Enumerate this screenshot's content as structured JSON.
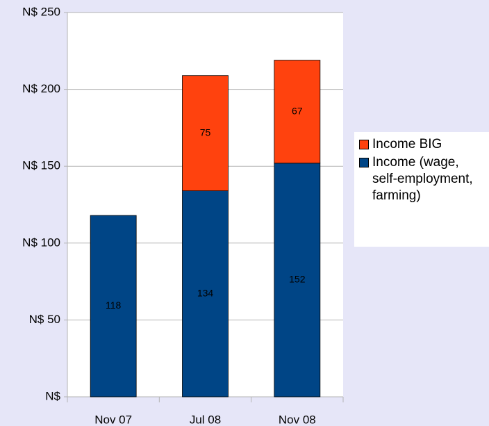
{
  "chart_data": {
    "type": "stacked_bar",
    "categories": [
      "Nov 07",
      "Jul 08",
      "Nov 08"
    ],
    "series": [
      {
        "name": "Income (wage, self-employment, farming)",
        "color": "#004586",
        "values": [
          118,
          134,
          152
        ]
      },
      {
        "name": "Income BIG",
        "color": "#ff420e",
        "values": [
          null,
          75,
          67
        ]
      }
    ],
    "ylim": [
      0,
      250
    ],
    "yticks": [
      {
        "value": 0,
        "label": "N$"
      },
      {
        "value": 50,
        "label": "N$ 50"
      },
      {
        "value": 100,
        "label": "N$ 100"
      },
      {
        "value": 150,
        "label": "N$ 150"
      },
      {
        "value": 200,
        "label": "N$ 200"
      },
      {
        "value": 250,
        "label": "N$ 250"
      }
    ],
    "grid": true,
    "legend": "right"
  }
}
